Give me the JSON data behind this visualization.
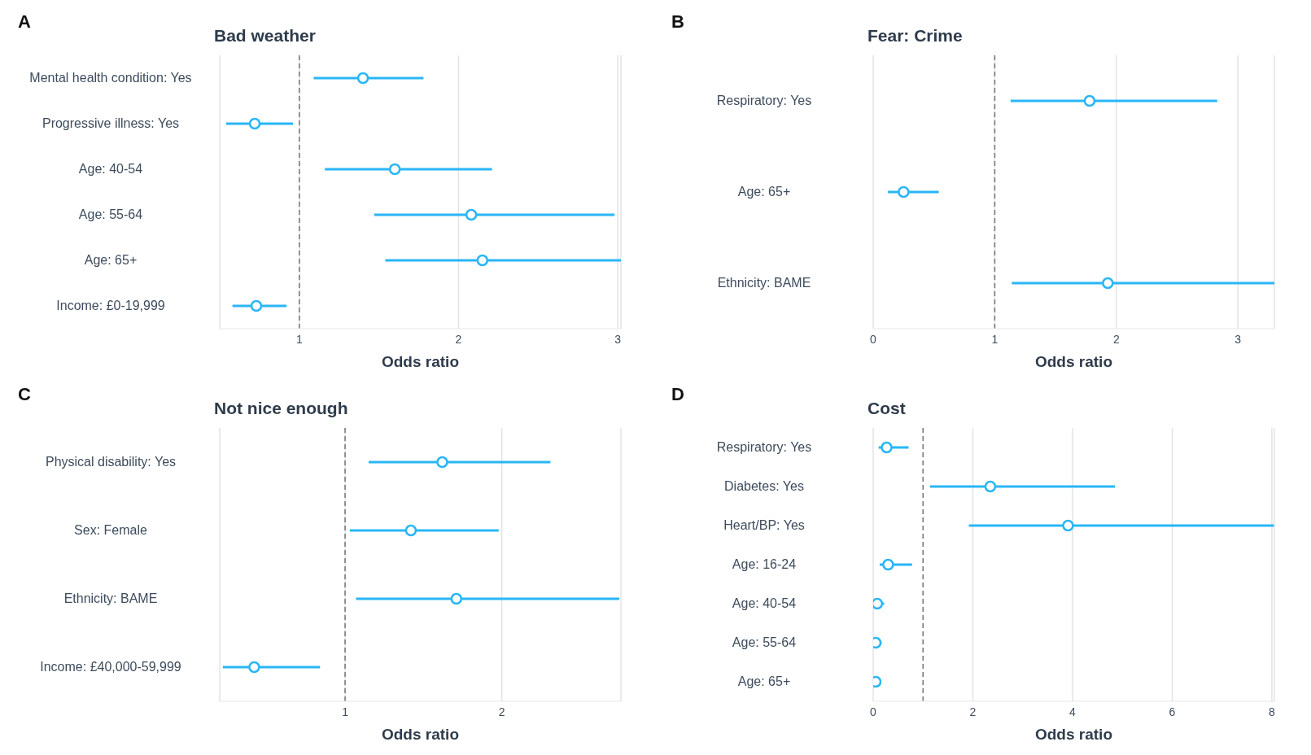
{
  "chart_data": [
    {
      "type": "scatter",
      "orientation": "horizontal",
      "annotations": [
        "A"
      ],
      "title": "Bad weather",
      "xlabel": "Odds ratio",
      "categories": [
        "Mental health condition: Yes",
        "Progressive illness: Yes",
        "Age: 40-54",
        "Age: 55-64",
        "Age: 65+",
        "Income: £0-19,999"
      ],
      "values": [
        1.4,
        0.72,
        1.6,
        2.08,
        2.15,
        0.73
      ],
      "errors": [
        [
          1.09,
          1.78
        ],
        [
          0.54,
          0.96
        ],
        [
          1.16,
          2.21
        ],
        [
          1.47,
          2.98
        ],
        [
          1.54,
          3.02
        ],
        [
          0.58,
          0.92
        ]
      ],
      "color": "#29b6f6",
      "marker": "circle",
      "xlim": [
        0.5,
        3.02
      ],
      "xticks": [
        1,
        2,
        3
      ],
      "grid": "x",
      "ref_lines": [
        {
          "axis": "x",
          "value": 1,
          "line_style": "dashed",
          "color": "#757575"
        }
      ]
    },
    {
      "type": "scatter",
      "orientation": "horizontal",
      "annotations": [
        "B"
      ],
      "title": "Fear: Crime",
      "xlabel": "Odds ratio",
      "categories": [
        "Respiratory: Yes",
        "Age: 65+",
        "Ethnicity: BAME"
      ],
      "values": [
        1.78,
        0.25,
        1.93
      ],
      "errors": [
        [
          1.13,
          2.83
        ],
        [
          0.12,
          0.54
        ],
        [
          1.14,
          3.3
        ]
      ],
      "color": "#29b6f6",
      "marker": "circle",
      "xlim": [
        0,
        3.3
      ],
      "xticks": [
        0,
        1,
        2,
        3
      ],
      "grid": "x",
      "ref_lines": [
        {
          "axis": "x",
          "value": 1,
          "line_style": "dashed",
          "color": "#757575"
        }
      ]
    },
    {
      "type": "scatter",
      "orientation": "horizontal",
      "annotations": [
        "C"
      ],
      "title": "Not nice enough",
      "xlabel": "Odds ratio",
      "categories": [
        "Physical disability: Yes",
        "Sex: Female",
        "Ethnicity: BAME",
        "Income: £40,000-59,999"
      ],
      "values": [
        1.62,
        1.42,
        1.71,
        0.42
      ],
      "errors": [
        [
          1.15,
          2.31
        ],
        [
          1.03,
          1.98
        ],
        [
          1.07,
          2.75
        ],
        [
          0.22,
          0.84
        ]
      ],
      "color": "#29b6f6",
      "marker": "circle",
      "xlim": [
        0.2,
        2.76
      ],
      "xticks": [
        1,
        2
      ],
      "grid": "x",
      "ref_lines": [
        {
          "axis": "x",
          "value": 1,
          "line_style": "dashed",
          "color": "#757575"
        }
      ]
    },
    {
      "type": "scatter",
      "orientation": "horizontal",
      "annotations": [
        "D"
      ],
      "title": "Cost",
      "xlabel": "Odds ratio",
      "categories": [
        "Respiratory: Yes",
        "Diabetes: Yes",
        "Heart/BP: Yes",
        "Age: 16-24",
        "Age: 40-54",
        "Age: 55-64",
        "Age: 65+"
      ],
      "values": [
        0.27,
        2.35,
        3.91,
        0.3,
        0.08,
        0.05,
        0.05
      ],
      "errors": [
        [
          0.11,
          0.71
        ],
        [
          1.14,
          4.85
        ],
        [
          1.92,
          8.04
        ],
        [
          0.13,
          0.78
        ],
        [
          0.03,
          0.22
        ],
        [
          0.0,
          0.17
        ],
        null
      ],
      "color": "#29b6f6",
      "marker": "circle",
      "xlim": [
        0,
        8.05
      ],
      "xticks": [
        0,
        2,
        4,
        6,
        8
      ],
      "grid": "x",
      "ref_lines": [
        {
          "axis": "x",
          "value": 1,
          "line_style": "dashed",
          "color": "#757575"
        }
      ]
    }
  ]
}
